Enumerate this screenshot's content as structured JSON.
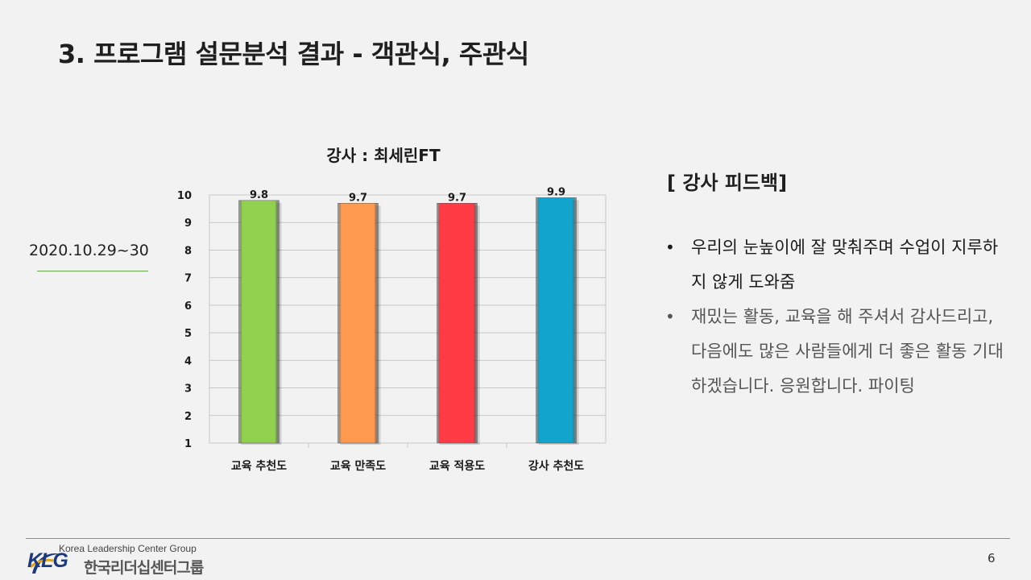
{
  "slide": {
    "title": "3. 프로그램 설문분석 결과 - 객관식, 주관식",
    "date": "2020.10.29~30",
    "page_number": "6"
  },
  "chart_data": {
    "type": "bar",
    "title": "강사 : 최세린FT",
    "categories": [
      "교육 추천도",
      "교육 만족도",
      "교육 적용도",
      "강사 추천도"
    ],
    "values": [
      9.8,
      9.7,
      9.7,
      9.9
    ],
    "value_labels": [
      "9.8",
      "9.7",
      "9.7",
      "9.9"
    ],
    "colors": [
      "#92d050",
      "#ff9a50",
      "#ff3b45",
      "#12a4cc"
    ],
    "ylim": [
      1,
      10
    ],
    "yticks": [
      "1",
      "2",
      "3",
      "4",
      "5",
      "6",
      "7",
      "8",
      "9",
      "10"
    ],
    "grid": true,
    "legend": "none"
  },
  "feedback": {
    "title": "[ 강사 피드백]",
    "items": [
      {
        "bullet": "•",
        "text": "우리의 눈높이에 잘 맞춰주며 수업이 지루하지 않게 도와줌"
      },
      {
        "bullet": "•",
        "text": "재밌는 활동, 교육을 해 주셔서 감사드리고, 다음에도 많은 사람들에게 더 좋은 활동 기대하겠습니다. 응원합니다. 파이팅"
      }
    ]
  },
  "footer": {
    "logo_en": "Korea Leadership Center Group",
    "logo_mark": "KLG",
    "logo_ko": "한국리더십센터그룹"
  }
}
